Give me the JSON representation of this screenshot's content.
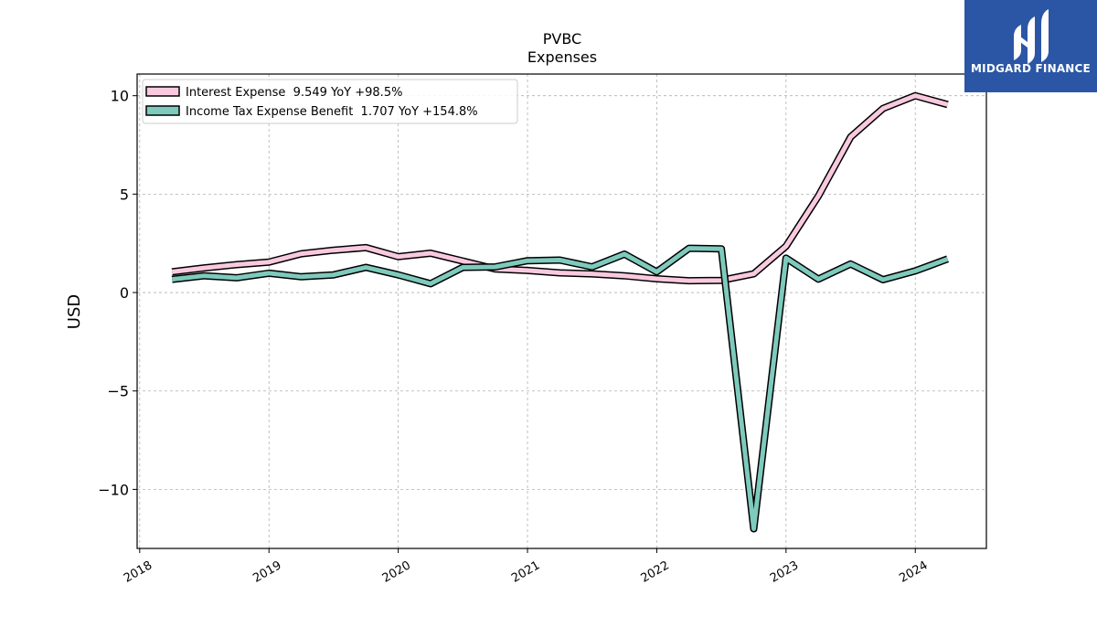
{
  "chart_data": {
    "type": "line",
    "title": "PVBC",
    "subtitle": "Expenses",
    "ylabel": "USD",
    "xlabel": "",
    "xlim": [
      2017.98,
      2024.55
    ],
    "ylim": [
      -13.0,
      11.1
    ],
    "x_ticks": [
      2018,
      2019,
      2020,
      2021,
      2022,
      2023,
      2024
    ],
    "x_tick_labels": [
      "2018",
      "2019",
      "2020",
      "2021",
      "2022",
      "2023",
      "2024"
    ],
    "y_ticks": [
      10,
      5,
      0,
      -5,
      -10
    ],
    "y_tick_labels": [
      "10",
      "5",
      "0",
      "−5",
      "−10"
    ],
    "grid": true,
    "legend_position": "top-left",
    "x": [
      2018.25,
      2018.5,
      2018.75,
      2019.0,
      2019.25,
      2019.5,
      2019.75,
      2020.0,
      2020.25,
      2020.5,
      2020.75,
      2021.0,
      2021.25,
      2021.5,
      2021.75,
      2022.0,
      2022.25,
      2022.5,
      2022.75,
      2023.0,
      2023.25,
      2023.5,
      2023.75,
      2024.0,
      2024.25
    ],
    "series": [
      {
        "name": "Interest Expense",
        "legend": "Interest Expense  9.549 YoY +98.5%",
        "color": "#f9c9df",
        "values": [
          1.05,
          1.25,
          1.42,
          1.55,
          1.97,
          2.15,
          2.28,
          1.82,
          2.0,
          1.6,
          1.2,
          1.12,
          1.0,
          0.95,
          0.85,
          0.7,
          0.6,
          0.62,
          0.95,
          2.35,
          4.9,
          7.9,
          9.35,
          10.0,
          9.55
        ]
      },
      {
        "name": "Income Tax Expense Benefit",
        "legend": "Income Tax Expense Benefit  1.707 YoY +154.8%",
        "color": "#7ecabd",
        "values": [
          0.67,
          0.85,
          0.75,
          0.98,
          0.8,
          0.9,
          1.28,
          0.9,
          0.45,
          1.28,
          1.3,
          1.62,
          1.65,
          1.3,
          1.95,
          1.05,
          2.25,
          2.22,
          -12.0,
          1.75,
          0.68,
          1.45,
          0.65,
          1.1,
          1.707
        ]
      }
    ]
  },
  "logo": {
    "text": "MIDGARD FINANCE",
    "background": "#2a56a5"
  }
}
